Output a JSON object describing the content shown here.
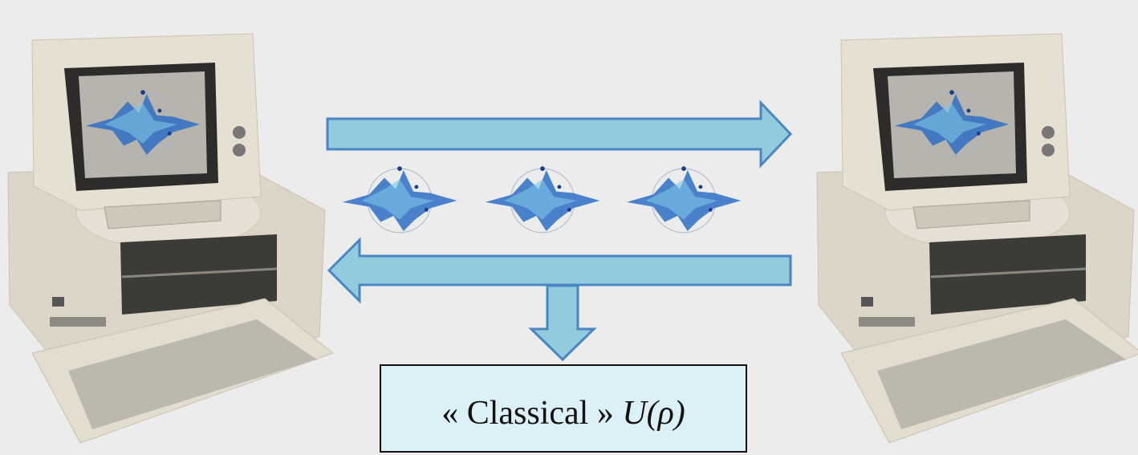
{
  "box": {
    "label": "« Classical »",
    "formula": "U(ρ)"
  }
}
